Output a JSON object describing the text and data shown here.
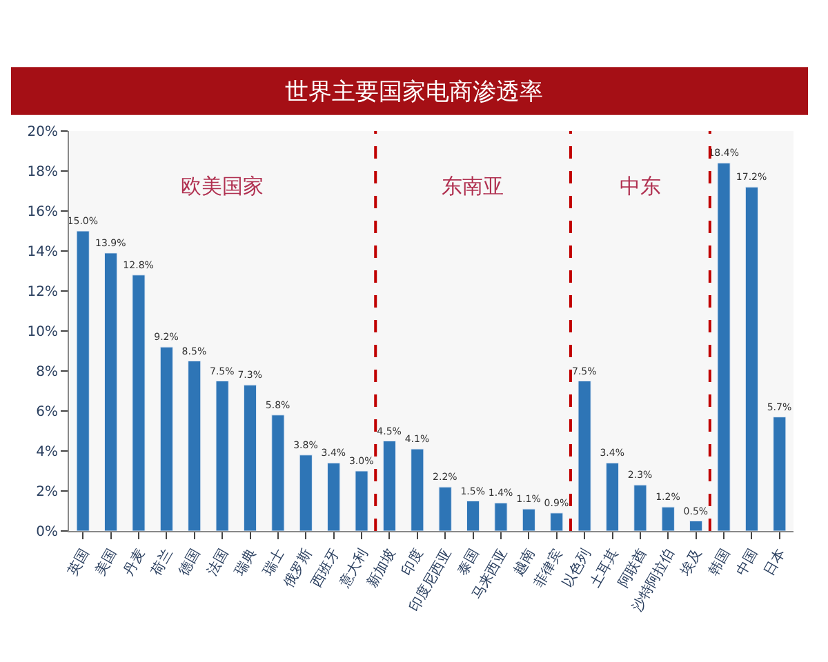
{
  "chart_data": {
    "type": "bar",
    "title": "世界主要国家电商渗透率",
    "categories": [
      "英国",
      "美国",
      "丹麦",
      "荷兰",
      "德国",
      "法国",
      "瑞典",
      "瑞士",
      "俄罗斯",
      "西班牙",
      "意大利",
      "新加坡",
      "印度",
      "印度尼西亚",
      "泰国",
      "马来西亚",
      "越南",
      "菲律宾",
      "以色列",
      "土耳其",
      "阿联酋",
      "沙特阿拉伯",
      "埃及",
      "韩国",
      "中国",
      "日本"
    ],
    "values": [
      15.0,
      13.9,
      12.8,
      9.2,
      8.5,
      7.5,
      7.3,
      5.8,
      3.8,
      3.4,
      3.0,
      4.5,
      4.1,
      2.2,
      1.5,
      1.4,
      1.1,
      0.9,
      7.5,
      3.4,
      2.3,
      1.2,
      0.5,
      18.4,
      17.2,
      5.7
    ],
    "value_labels": [
      "15.0%",
      "13.9%",
      "12.8%",
      "9.2%",
      "8.5%",
      "7.5%",
      "7.3%",
      "5.8%",
      "3.8%",
      "3.4%",
      "3.0%",
      "4.5%",
      "4.1%",
      "2.2%",
      "1.5%",
      "1.4%",
      "1.1%",
      "0.9%",
      "7.5%",
      "3.4%",
      "2.3%",
      "1.2%",
      "0.5%",
      "18.4%",
      "17.2%",
      "5.7%"
    ],
    "color": "#2e75b6",
    "ylim": [
      0,
      20
    ],
    "yticks": [
      {
        "value": 0,
        "label": "0%"
      },
      {
        "value": 2,
        "label": "2%"
      },
      {
        "value": 4,
        "label": "4%"
      },
      {
        "value": 6,
        "label": "6%"
      },
      {
        "value": 8,
        "label": "8%"
      },
      {
        "value": 10,
        "label": "10%"
      },
      {
        "value": 12,
        "label": "12%"
      },
      {
        "value": 14,
        "label": "14%"
      },
      {
        "value": 16,
        "label": "16%"
      },
      {
        "value": 18,
        "label": "18%"
      },
      {
        "value": 20,
        "label": "20%"
      }
    ],
    "annotations": [
      "欧美国家",
      "东南亚",
      "中东"
    ],
    "grid": false
  }
}
